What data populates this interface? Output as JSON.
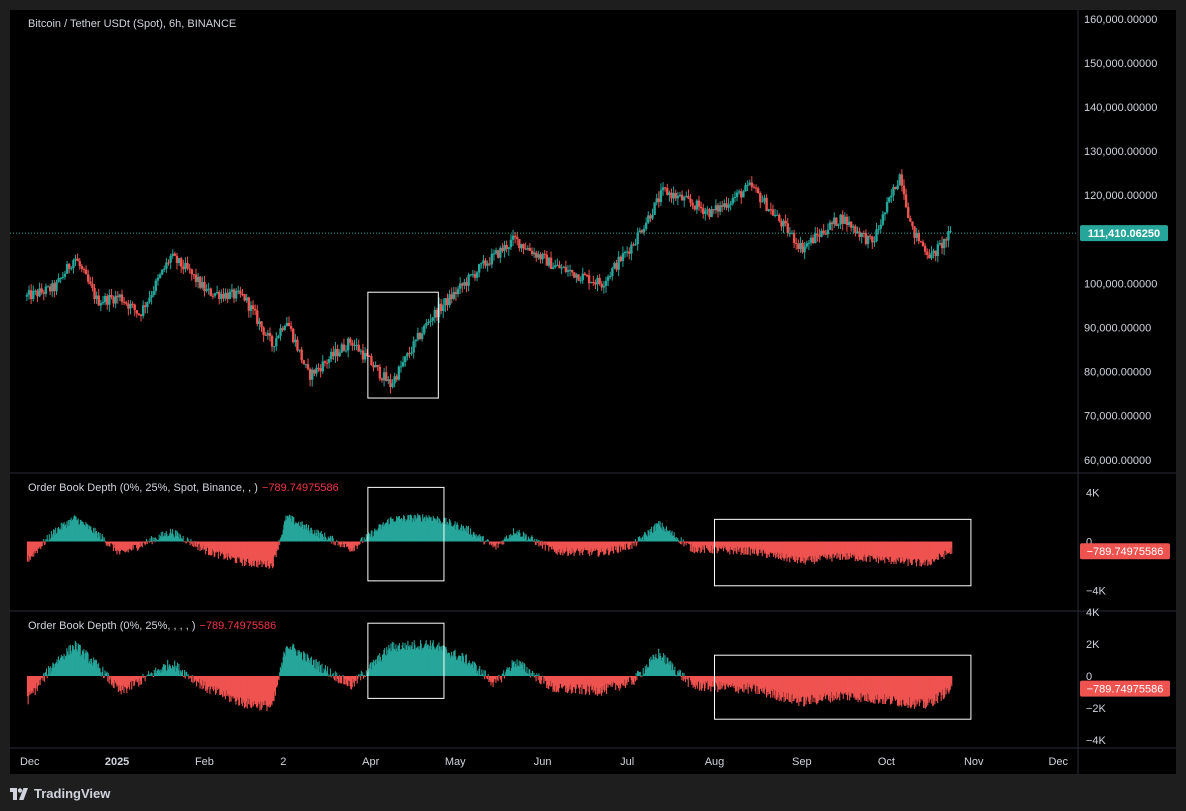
{
  "header": {
    "symbol_title": "Bitcoin / Tether USDt (Spot), 6h, BINANCE"
  },
  "indicators": [
    {
      "name": "Order Book Depth (0%, 25%, Spot, Binance, , )",
      "value": "−789.74975586"
    },
    {
      "name": "Order Book Depth (0%, 25%, , , , )",
      "value": "−789.74975586"
    }
  ],
  "footer": {
    "brand": "TradingView"
  },
  "colors": {
    "up": "#26a69a",
    "down": "#ef5350",
    "background": "#000000",
    "text": "#d1d4dc",
    "last_price_bg": "#26a69a",
    "last_value_bg": "#ef5350"
  },
  "chart_data": [
    {
      "type": "candlestick",
      "title": "Bitcoin / Tether USDt (Spot), 6h, BINANCE",
      "x_ticks": [
        "Dec",
        "2025",
        "Feb",
        "2",
        "Apr",
        "May",
        "Jun",
        "Jul",
        "Aug",
        "Sep",
        "Oct",
        "Nov",
        "Dec"
      ],
      "y_ticks": [
        "160,000.00000",
        "150,000.00000",
        "140,000.00000",
        "130,000.00000",
        "120,000.00000",
        "100,000.00000",
        "90,000.00000",
        "80,000.00000",
        "70,000.00000",
        "60,000.00000"
      ],
      "ylim": [
        57000,
        162000
      ],
      "last_price": 111410.0625,
      "last_price_label": "111,410.06250",
      "approx_close_path": [
        {
          "x": "Nov 30",
          "y": 97000
        },
        {
          "x": "Dec 10",
          "y": 99000
        },
        {
          "x": "Dec 17",
          "y": 106000
        },
        {
          "x": "Dec 25",
          "y": 96000
        },
        {
          "x": "Jan 2",
          "y": 97000
        },
        {
          "x": "Jan 9",
          "y": 93000
        },
        {
          "x": "Jan 20",
          "y": 106000
        },
        {
          "x": "Jan 26",
          "y": 103000
        },
        {
          "x": "Feb 2",
          "y": 98000
        },
        {
          "x": "Feb 15",
          "y": 97000
        },
        {
          "x": "Feb 25",
          "y": 86000
        },
        {
          "x": "Mar 2",
          "y": 92000
        },
        {
          "x": "Mar 10",
          "y": 79000
        },
        {
          "x": "Mar 25",
          "y": 87000
        },
        {
          "x": "Apr 8",
          "y": 77000
        },
        {
          "x": "Apr 22",
          "y": 92000
        },
        {
          "x": "May 9",
          "y": 103000
        },
        {
          "x": "May 22",
          "y": 110000
        },
        {
          "x": "Jun 5",
          "y": 104000
        },
        {
          "x": "Jun 22",
          "y": 100000
        },
        {
          "x": "Jul 3",
          "y": 109000
        },
        {
          "x": "Jul 14",
          "y": 121000
        },
        {
          "x": "Jul 31",
          "y": 116000
        },
        {
          "x": "Aug 14",
          "y": 122000
        },
        {
          "x": "Sep 1",
          "y": 108000
        },
        {
          "x": "Sep 15",
          "y": 115000
        },
        {
          "x": "Sep 26",
          "y": 109000
        },
        {
          "x": "Oct 6",
          "y": 125000
        },
        {
          "x": "Oct 10",
          "y": 112000
        },
        {
          "x": "Oct 17",
          "y": 106000
        },
        {
          "x": "Oct 24",
          "y": 111400
        }
      ],
      "annotations": [
        {
          "type": "rectangle",
          "x_range": [
            "Mar 31",
            "Apr 25"
          ],
          "y_range": [
            74000,
            98000
          ]
        }
      ]
    },
    {
      "type": "histogram",
      "title": "Order Book Depth (0%, 25%, Spot, Binance, , )",
      "y_ticks": [
        "4K",
        "0",
        "−4K"
      ],
      "ylim": [
        -5000,
        5000
      ],
      "last_value": -789.74975586,
      "last_value_label": "−789.74975586",
      "approx_values": [
        {
          "x": "Nov 30",
          "y": -1500
        },
        {
          "x": "Dec 10",
          "y": 900
        },
        {
          "x": "Dec 17",
          "y": 1900
        },
        {
          "x": "Dec 25",
          "y": 600
        },
        {
          "x": "Jan 2",
          "y": -1000
        },
        {
          "x": "Jan 9",
          "y": -300
        },
        {
          "x": "Jan 20",
          "y": 800
        },
        {
          "x": "Feb 2",
          "y": -800
        },
        {
          "x": "Feb 15",
          "y": -1700
        },
        {
          "x": "Feb 25",
          "y": -1900
        },
        {
          "x": "Mar 2",
          "y": 2000
        },
        {
          "x": "Mar 10",
          "y": 1000
        },
        {
          "x": "Mar 25",
          "y": -600
        },
        {
          "x": "Apr 8",
          "y": 1800
        },
        {
          "x": "Apr 22",
          "y": 2000
        },
        {
          "x": "May 5",
          "y": 1000
        },
        {
          "x": "May 15",
          "y": -500
        },
        {
          "x": "May 22",
          "y": 900
        },
        {
          "x": "Jun 5",
          "y": -800
        },
        {
          "x": "Jun 22",
          "y": -900
        },
        {
          "x": "Jul 3",
          "y": -300
        },
        {
          "x": "Jul 12",
          "y": 1400
        },
        {
          "x": "Jul 24",
          "y": -600
        },
        {
          "x": "Aug 14",
          "y": -800
        },
        {
          "x": "Sep 1",
          "y": -1600
        },
        {
          "x": "Sep 15",
          "y": -1200
        },
        {
          "x": "Oct 1",
          "y": -1500
        },
        {
          "x": "Oct 15",
          "y": -1800
        },
        {
          "x": "Oct 24",
          "y": -790
        }
      ],
      "annotations": [
        {
          "type": "rectangle",
          "x_range": [
            "Mar 31",
            "Apr 27"
          ],
          "y_range": [
            -3200,
            4400
          ]
        },
        {
          "type": "rectangle",
          "x_range": [
            "Aug 1",
            "Oct 31"
          ],
          "y_range": [
            -3600,
            1800
          ]
        }
      ]
    },
    {
      "type": "histogram",
      "title": "Order Book Depth (0%, 25%, , , , )",
      "y_ticks": [
        "4K",
        "2K",
        "0",
        "−2K",
        "−4K"
      ],
      "ylim": [
        -4000,
        4000
      ],
      "last_value": -789.74975586,
      "last_value_label": "−789.74975586",
      "approx_values": [
        {
          "x": "Nov 30",
          "y": -1500
        },
        {
          "x": "Dec 10",
          "y": 900
        },
        {
          "x": "Dec 17",
          "y": 1900
        },
        {
          "x": "Dec 25",
          "y": 600
        },
        {
          "x": "Jan 2",
          "y": -1000
        },
        {
          "x": "Jan 9",
          "y": -300
        },
        {
          "x": "Jan 20",
          "y": 800
        },
        {
          "x": "Feb 2",
          "y": -800
        },
        {
          "x": "Feb 15",
          "y": -1700
        },
        {
          "x": "Feb 25",
          "y": -1900
        },
        {
          "x": "Mar 2",
          "y": 2000
        },
        {
          "x": "Mar 10",
          "y": 1000
        },
        {
          "x": "Mar 25",
          "y": -600
        },
        {
          "x": "Apr 8",
          "y": 1800
        },
        {
          "x": "Apr 22",
          "y": 2000
        },
        {
          "x": "May 5",
          "y": 1000
        },
        {
          "x": "May 15",
          "y": -500
        },
        {
          "x": "May 22",
          "y": 900
        },
        {
          "x": "Jun 5",
          "y": -800
        },
        {
          "x": "Jun 22",
          "y": -900
        },
        {
          "x": "Jul 3",
          "y": -300
        },
        {
          "x": "Jul 12",
          "y": 1400
        },
        {
          "x": "Jul 24",
          "y": -600
        },
        {
          "x": "Aug 14",
          "y": -800
        },
        {
          "x": "Sep 1",
          "y": -1600
        },
        {
          "x": "Sep 15",
          "y": -1200
        },
        {
          "x": "Oct 1",
          "y": -1500
        },
        {
          "x": "Oct 15",
          "y": -1800
        },
        {
          "x": "Oct 24",
          "y": -790
        }
      ],
      "annotations": [
        {
          "type": "rectangle",
          "x_range": [
            "Mar 31",
            "Apr 27"
          ],
          "y_range": [
            -1400,
            3300
          ]
        },
        {
          "type": "rectangle",
          "x_range": [
            "Aug 1",
            "Oct 31"
          ],
          "y_range": [
            -2700,
            1300
          ]
        }
      ]
    }
  ]
}
